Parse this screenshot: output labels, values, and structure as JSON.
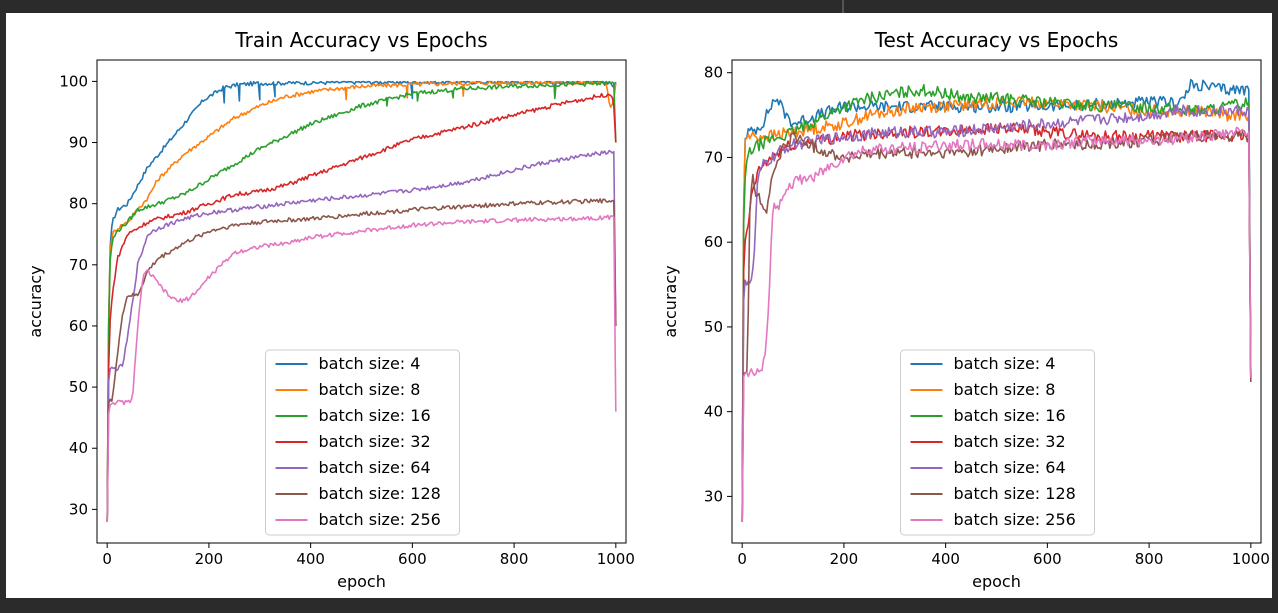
{
  "chart_data": [
    {
      "type": "line",
      "title": "Train Accuracy vs Epochs",
      "xlabel": "epoch",
      "ylabel": "accuracy",
      "xlim": [
        -20,
        1020
      ],
      "ylim": [
        24.5,
        103.5
      ],
      "xticks": [
        0,
        200,
        400,
        600,
        800,
        1000
      ],
      "yticks": [
        30,
        40,
        50,
        60,
        70,
        80,
        90,
        100
      ],
      "legend_position": "lower center",
      "series": [
        {
          "name": "batch size: 4",
          "color": "#1f77b4",
          "x": [
            0,
            2,
            5,
            10,
            20,
            40,
            60,
            80,
            100,
            130,
            160,
            190,
            210,
            230,
            260,
            300,
            400,
            500,
            600,
            700,
            800,
            900,
            990,
            996,
            1000
          ],
          "y": [
            28,
            55,
            72,
            77,
            79,
            80,
            83,
            86,
            88,
            91,
            94,
            97,
            98,
            99,
            99.5,
            99.7,
            99.8,
            99.9,
            99.9,
            99.9,
            99.9,
            99.9,
            99.9,
            99,
            99.9
          ],
          "dips": [
            [
              230,
              96.5
            ],
            [
              260,
              96.8
            ],
            [
              300,
              97
            ],
            [
              330,
              97.5
            ],
            [
              600,
              97.2
            ],
            [
              880,
              97.5
            ]
          ]
        },
        {
          "name": "batch size: 8",
          "color": "#ff7f0e",
          "x": [
            0,
            2,
            5,
            10,
            20,
            40,
            60,
            80,
            100,
            150,
            200,
            250,
            300,
            350,
            400,
            450,
            500,
            600,
            700,
            800,
            900,
            980,
            990,
            996,
            1000
          ],
          "y": [
            28,
            55,
            72,
            75,
            76,
            77,
            79,
            81,
            84,
            88,
            91,
            94,
            96,
            97.5,
            98.3,
            98.8,
            99.2,
            99.5,
            99.7,
            99.8,
            99.8,
            99.8,
            95.5,
            97,
            99.7
          ],
          "dips": [
            [
              470,
              97
            ],
            [
              590,
              97.3
            ],
            [
              700,
              97.6
            ]
          ]
        },
        {
          "name": "batch size: 16",
          "color": "#2ca02c",
          "x": [
            0,
            2,
            5,
            10,
            20,
            40,
            60,
            80,
            100,
            150,
            200,
            250,
            300,
            350,
            400,
            450,
            500,
            550,
            600,
            700,
            800,
            900,
            950,
            990,
            996,
            1000
          ],
          "y": [
            28,
            55,
            70,
            74,
            75.5,
            77,
            79,
            79.5,
            80,
            81.5,
            84,
            86.5,
            89,
            91,
            93,
            94.5,
            96,
            97,
            98,
            98.8,
            99.2,
            99.5,
            99.6,
            99.7,
            99.7,
            90
          ],
          "dips": [
            [
              550,
              96
            ],
            [
              610,
              96.8
            ],
            [
              680,
              97.3
            ],
            [
              880,
              97.2
            ]
          ]
        },
        {
          "name": "batch size: 32",
          "color": "#d62728",
          "x": [
            0,
            2,
            5,
            10,
            20,
            40,
            60,
            80,
            100,
            150,
            200,
            250,
            300,
            350,
            400,
            450,
            500,
            550,
            600,
            650,
            700,
            750,
            800,
            850,
            900,
            950,
            990,
            996,
            1000
          ],
          "y": [
            28,
            50,
            60,
            65,
            71,
            75,
            76,
            77,
            77.5,
            78.5,
            80,
            81.5,
            82,
            83,
            84.5,
            86,
            87.5,
            89,
            90.5,
            91.5,
            92.5,
            93.5,
            94.5,
            95.5,
            96.5,
            97.3,
            98,
            96,
            90
          ]
        },
        {
          "name": "batch size: 64",
          "color": "#9467bd",
          "x": [
            0,
            2,
            5,
            10,
            20,
            30,
            40,
            60,
            80,
            100,
            150,
            200,
            250,
            300,
            350,
            400,
            500,
            600,
            700,
            750,
            800,
            850,
            900,
            950,
            996,
            1000
          ],
          "y": [
            28,
            50,
            53,
            53,
            53,
            53.5,
            58,
            70,
            75,
            76,
            77.5,
            78.5,
            79,
            79.5,
            80,
            80.5,
            81.3,
            82.2,
            83.5,
            84.5,
            85.5,
            86.5,
            87.3,
            88,
            88.5,
            60
          ]
        },
        {
          "name": "batch size: 128",
          "color": "#8c564b",
          "x": [
            0,
            2,
            5,
            10,
            20,
            30,
            40,
            60,
            70,
            80,
            100,
            150,
            200,
            250,
            300,
            350,
            400,
            500,
            600,
            700,
            800,
            900,
            996,
            1000
          ],
          "y": [
            28,
            47,
            48,
            48,
            55,
            62,
            65,
            65,
            67,
            69,
            71,
            73.5,
            75.5,
            76.5,
            77,
            77.3,
            77.5,
            78.3,
            79,
            79.5,
            80,
            80.3,
            80.5,
            60
          ]
        },
        {
          "name": "batch size: 256",
          "color": "#e377c2",
          "x": [
            0,
            2,
            5,
            10,
            20,
            40,
            50,
            60,
            70,
            80,
            100,
            120,
            140,
            160,
            180,
            200,
            250,
            300,
            350,
            400,
            500,
            600,
            700,
            800,
            900,
            996,
            1000
          ],
          "y": [
            28,
            45,
            47,
            47.5,
            47.5,
            47.5,
            48,
            60,
            68,
            69,
            67,
            65,
            64,
            64.5,
            66,
            68,
            72,
            73,
            73.5,
            74.5,
            75.5,
            76.5,
            77,
            77.3,
            77.5,
            77.8,
            46
          ]
        }
      ]
    },
    {
      "type": "line",
      "title": "Test Accuracy vs Epochs",
      "xlabel": "epoch",
      "ylabel": "accuracy",
      "xlim": [
        -20,
        1020
      ],
      "ylim": [
        24.5,
        81.5
      ],
      "xticks": [
        0,
        200,
        400,
        600,
        800,
        1000
      ],
      "yticks": [
        30,
        40,
        50,
        60,
        70,
        80
      ],
      "legend_position": "lower center",
      "series": [
        {
          "name": "batch size: 4",
          "color": "#1f77b4",
          "x": [
            0,
            2,
            5,
            10,
            20,
            40,
            60,
            70,
            80,
            100,
            150,
            200,
            300,
            400,
            500,
            600,
            700,
            800,
            850,
            870,
            880,
            900,
            950,
            996,
            1000
          ],
          "y": [
            27,
            60,
            72,
            73,
            73,
            74,
            76.5,
            77,
            75.5,
            74,
            75,
            76,
            76,
            76,
            76,
            76,
            76.3,
            76.5,
            76.5,
            77,
            78.5,
            78.5,
            78,
            78,
            44
          ]
        },
        {
          "name": "batch size: 8",
          "color": "#ff7f0e",
          "x": [
            0,
            2,
            5,
            10,
            20,
            50,
            100,
            150,
            200,
            250,
            300,
            350,
            400,
            500,
            600,
            700,
            800,
            900,
            950,
            996,
            1000
          ],
          "y": [
            27,
            60,
            72,
            72.5,
            72.5,
            72.5,
            73,
            73.5,
            74,
            75,
            75.5,
            76,
            76,
            76.5,
            76.5,
            76,
            75.5,
            75.5,
            75,
            75,
            44
          ]
        },
        {
          "name": "batch size: 16",
          "color": "#2ca02c",
          "x": [
            0,
            2,
            5,
            10,
            20,
            50,
            80,
            100,
            150,
            200,
            250,
            300,
            350,
            400,
            450,
            500,
            600,
            700,
            800,
            900,
            950,
            996,
            1000
          ],
          "y": [
            27,
            60,
            67,
            70,
            71,
            72,
            72.5,
            73,
            74.5,
            76,
            77,
            77.5,
            78,
            77.5,
            77,
            77,
            76.5,
            76,
            76,
            75.5,
            76,
            76.5,
            44
          ]
        },
        {
          "name": "batch size: 32",
          "color": "#d62728",
          "x": [
            0,
            2,
            5,
            10,
            20,
            30,
            40,
            60,
            80,
            100,
            150,
            200,
            300,
            400,
            500,
            600,
            700,
            800,
            900,
            996,
            1000
          ],
          "y": [
            27,
            55,
            60,
            61,
            66,
            68,
            69,
            70,
            71,
            71.5,
            72,
            72.5,
            73,
            73,
            73.5,
            73,
            72.5,
            72.5,
            72.5,
            72.5,
            44
          ]
        },
        {
          "name": "batch size: 64",
          "color": "#9467bd",
          "x": [
            0,
            2,
            5,
            10,
            20,
            25,
            30,
            40,
            60,
            80,
            100,
            150,
            200,
            300,
            400,
            500,
            600,
            700,
            800,
            850,
            900,
            950,
            996,
            1000
          ],
          "y": [
            27,
            52,
            55.5,
            55.5,
            55.5,
            60,
            67,
            69,
            70,
            71,
            71.5,
            72,
            72.5,
            73,
            73,
            73.5,
            74,
            74.5,
            75,
            75.5,
            75.5,
            75.5,
            75.5,
            44
          ]
        },
        {
          "name": "batch size: 128",
          "color": "#8c564b",
          "x": [
            0,
            2,
            5,
            10,
            15,
            20,
            25,
            30,
            40,
            50,
            60,
            80,
            100,
            150,
            200,
            300,
            400,
            500,
            600,
            700,
            800,
            900,
            996,
            1000
          ],
          "y": [
            27,
            44.5,
            44.5,
            45,
            63,
            69,
            66,
            66,
            64,
            64,
            68,
            71,
            72.5,
            71,
            70,
            70.5,
            70.5,
            71,
            71.5,
            71.5,
            72,
            72.5,
            72.5,
            43.5
          ]
        },
        {
          "name": "batch size: 256",
          "color": "#e377c2",
          "x": [
            0,
            2,
            5,
            10,
            20,
            40,
            50,
            60,
            70,
            80,
            100,
            150,
            200,
            250,
            300,
            400,
            500,
            600,
            700,
            800,
            900,
            996,
            1000
          ],
          "y": [
            27,
            44,
            44.5,
            44.5,
            44.5,
            44.5,
            50,
            64,
            64,
            66,
            67,
            68,
            70,
            71,
            71,
            71.5,
            71.5,
            71.5,
            72,
            72,
            72.5,
            73,
            44
          ]
        }
      ]
    }
  ]
}
